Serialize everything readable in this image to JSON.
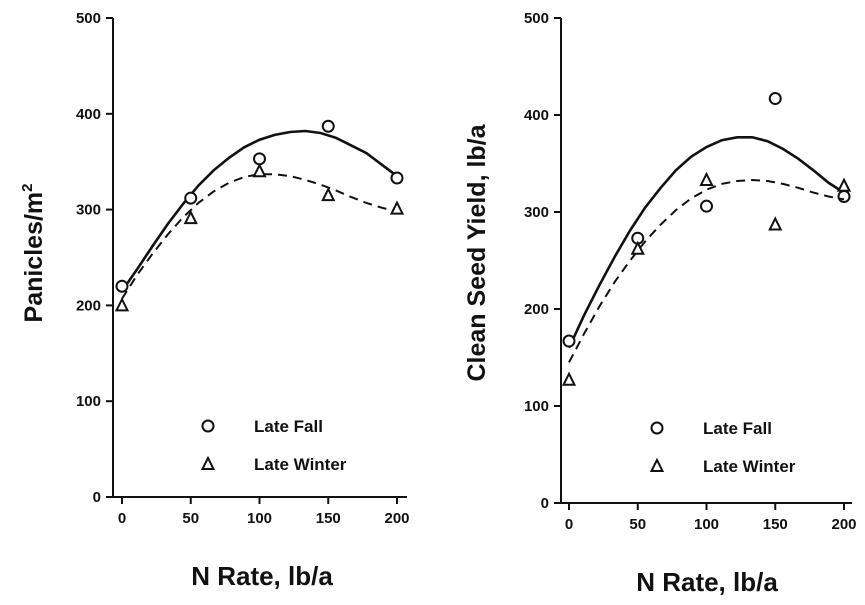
{
  "chart_data": [
    {
      "type": "scatter",
      "ylabel": "Panicles/m",
      "ylabel_superscript": "2",
      "xlabel": "N Rate, lb/a",
      "xlim": [
        0,
        200
      ],
      "ylim": [
        0,
        500
      ],
      "xticks": [
        0,
        50,
        100,
        150,
        200
      ],
      "yticks": [
        0,
        100,
        200,
        300,
        400,
        500
      ],
      "legend_position": "bottom-right",
      "series": [
        {
          "name": "Late Fall",
          "marker": "circle",
          "line_style": "solid",
          "x": [
            0,
            50,
            100,
            150,
            200
          ],
          "y": [
            220,
            312,
            353,
            387,
            333
          ],
          "fit": [
            215,
            238,
            262,
            285,
            306,
            325,
            341,
            354,
            365,
            373,
            378,
            381,
            382,
            380,
            375,
            367,
            359,
            347,
            335
          ]
        },
        {
          "name": "Late Winter",
          "marker": "triangle",
          "line_style": "dashed",
          "x": [
            0,
            50,
            100,
            150,
            200
          ],
          "y": [
            200,
            291,
            340,
            315,
            301
          ],
          "fit": [
            207,
            232,
            254,
            274,
            292,
            307,
            319,
            328,
            334,
            337,
            337,
            335,
            331,
            326,
            320,
            313,
            307,
            302,
            298
          ]
        }
      ]
    },
    {
      "type": "scatter",
      "ylabel": "Clean Seed Yield, lb/a",
      "xlabel": "N Rate, lb/a",
      "xlim": [
        0,
        200
      ],
      "ylim": [
        0,
        500
      ],
      "xticks": [
        0,
        50,
        100,
        150,
        200
      ],
      "yticks": [
        0,
        100,
        200,
        300,
        400,
        500
      ],
      "legend_position": "bottom-right",
      "series": [
        {
          "name": "Late Fall",
          "marker": "circle",
          "line_style": "solid",
          "x": [
            0,
            50,
            100,
            150,
            200
          ],
          "y": [
            167,
            273,
            306,
            417,
            316
          ],
          "fit": [
            160,
            194,
            225,
            254,
            281,
            305,
            325,
            343,
            357,
            367,
            374,
            377,
            377,
            373,
            365,
            355,
            343,
            330,
            320
          ]
        },
        {
          "name": "Late Winter",
          "marker": "triangle",
          "line_style": "dashed",
          "x": [
            0,
            50,
            100,
            150,
            200
          ],
          "y": [
            127,
            262,
            333,
            287,
            327
          ],
          "fit": [
            145,
            175,
            203,
            228,
            250,
            270,
            287,
            302,
            314,
            323,
            329,
            332,
            333,
            332,
            329,
            325,
            320,
            316,
            313
          ]
        }
      ]
    }
  ]
}
